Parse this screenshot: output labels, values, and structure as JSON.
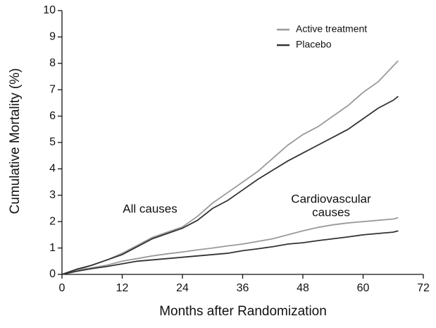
{
  "chart_data": {
    "type": "line",
    "x_label": "Months after Randomization",
    "y_label": "Cumulative Mortality (%)",
    "x": [
      0,
      3,
      6,
      9,
      12,
      15,
      18,
      21,
      24,
      27,
      30,
      33,
      36,
      39,
      42,
      45,
      48,
      51,
      54,
      57,
      60,
      63,
      66,
      67
    ],
    "series": [
      {
        "name": "Active treatment",
        "color": "#9a9a9a",
        "values": [
          0,
          0.15,
          0.35,
          0.55,
          0.8,
          1.1,
          1.4,
          1.6,
          1.8,
          2.2,
          2.7,
          3.1,
          3.5,
          3.9,
          4.4,
          4.9,
          5.3,
          5.6,
          6.0,
          6.4,
          6.9,
          7.3,
          7.9,
          8.1
        ],
        "cv_values": [
          0,
          0.15,
          0.25,
          0.35,
          0.5,
          0.6,
          0.7,
          0.78,
          0.85,
          0.93,
          1.0,
          1.08,
          1.15,
          1.25,
          1.35,
          1.5,
          1.65,
          1.78,
          1.88,
          1.95,
          2.0,
          2.05,
          2.1,
          2.15
        ]
      },
      {
        "name": "Placebo",
        "color": "#333333",
        "values": [
          0,
          0.2,
          0.35,
          0.55,
          0.75,
          1.05,
          1.35,
          1.55,
          1.75,
          2.05,
          2.5,
          2.8,
          3.2,
          3.6,
          3.95,
          4.3,
          4.6,
          4.9,
          5.2,
          5.5,
          5.9,
          6.3,
          6.6,
          6.75
        ],
        "cv_values": [
          0,
          0.12,
          0.22,
          0.3,
          0.4,
          0.5,
          0.55,
          0.6,
          0.65,
          0.7,
          0.75,
          0.8,
          0.9,
          0.97,
          1.05,
          1.15,
          1.2,
          1.28,
          1.35,
          1.42,
          1.5,
          1.55,
          1.6,
          1.65
        ]
      }
    ],
    "annotations": [
      [
        "All causes"
      ],
      [
        "Cardiovascular",
        "causes"
      ]
    ],
    "xlim": [
      0,
      72
    ],
    "xticks": [
      0,
      12,
      24,
      36,
      48,
      60,
      72
    ],
    "ylim": [
      0,
      10
    ],
    "yticks": [
      0,
      1,
      2,
      3,
      4,
      5,
      6,
      7,
      8,
      9,
      10
    ],
    "legend": "top-right"
  }
}
